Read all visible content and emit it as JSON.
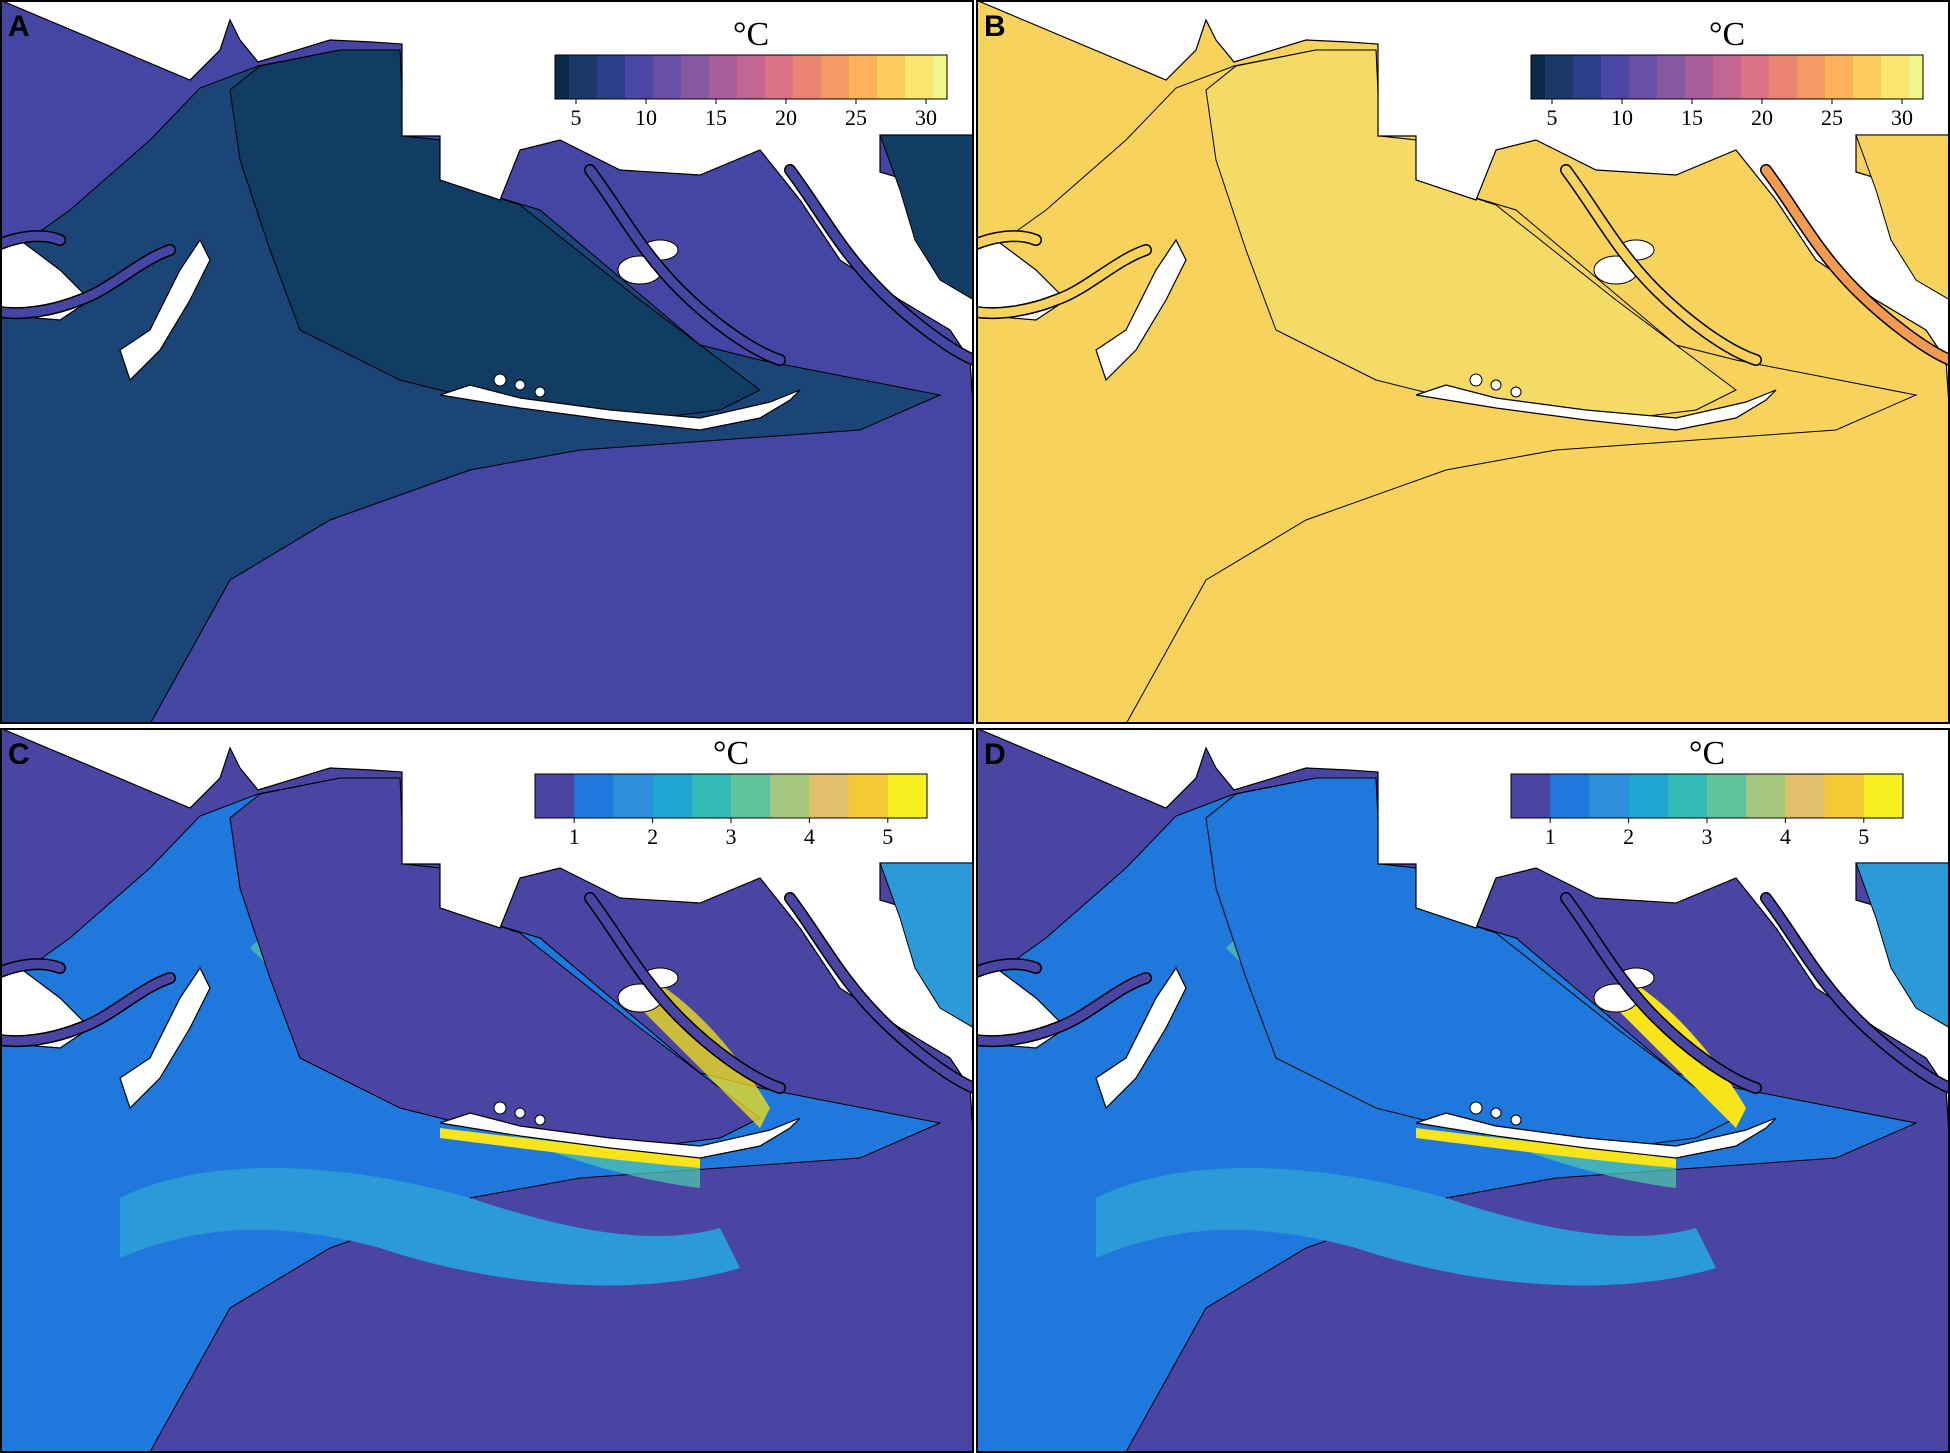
{
  "figure": {
    "panels": [
      {
        "letter": "A",
        "variant": "temp_cold",
        "colorbar": {
          "unit": "°C",
          "ticks": [
            "5",
            "10",
            "15",
            "20",
            "25",
            "30"
          ],
          "vmin": 3.5,
          "vmax": 31.5,
          "palette": "thermal",
          "bins": 28
        },
        "colors": {
          "land": "#ffffff",
          "sea": "#4545a3",
          "mid": "#1c4577",
          "inner": "#113c63",
          "channel": "#4545a3"
        }
      },
      {
        "letter": "B",
        "variant": "temp_warm",
        "colorbar": {
          "unit": "°C",
          "ticks": [
            "5",
            "10",
            "15",
            "20",
            "25",
            "30"
          ],
          "vmin": 3.5,
          "vmax": 31.5,
          "palette": "thermal",
          "bins": 28
        },
        "colors": {
          "land": "#ffffff",
          "sea": "#f7d25c",
          "mid": "#f7d25c",
          "inner": "#f6da66",
          "channel": "#f7d25c",
          "river_right": "#f29a50"
        }
      },
      {
        "letter": "C",
        "variant": "diff_low",
        "colorbar": {
          "unit": "°C",
          "ticks": [
            "1",
            "2",
            "3",
            "4",
            "5"
          ],
          "vmin": 0.5,
          "vmax": 5.5,
          "palette": "difference",
          "bins": 10
        },
        "colors": {
          "land": "#ffffff",
          "sea": "#4a45a3",
          "mid": "#1f78db",
          "band": "#2b9ad8",
          "inner": "#4a45a3",
          "channel": "#4a45a3",
          "hot": "#f7e41a",
          "warm": "#4fc4b0"
        }
      },
      {
        "letter": "D",
        "variant": "diff_high",
        "colorbar": {
          "unit": "°C",
          "ticks": [
            "1",
            "2",
            "3",
            "4",
            "5"
          ],
          "vmin": 0.5,
          "vmax": 5.5,
          "palette": "difference",
          "bins": 10
        },
        "colors": {
          "land": "#ffffff",
          "sea": "#4a45a3",
          "mid": "#1f78db",
          "band": "#2b9ad8",
          "inner": "#1f78db",
          "channel": "#4a45a3",
          "hot": "#f7e41a",
          "warm": "#4fc4b0"
        }
      }
    ],
    "palettes": {
      "thermal": [
        "#0b2a4a",
        "#1b3a6b",
        "#2c3f8a",
        "#4a47a6",
        "#6a4fa8",
        "#8a57a3",
        "#a75e9c",
        "#c26692",
        "#d97384",
        "#eb8473",
        "#f59a63",
        "#fbb35a",
        "#fccc5e",
        "#fae56e",
        "#f3f58a"
      ],
      "difference": [
        "#4a45a3",
        "#1f78db",
        "#2d8fd9",
        "#1da6d1",
        "#33bbb7",
        "#5fc49d",
        "#a7c77f",
        "#e0c06a",
        "#f5c834",
        "#f7f021"
      ]
    }
  }
}
